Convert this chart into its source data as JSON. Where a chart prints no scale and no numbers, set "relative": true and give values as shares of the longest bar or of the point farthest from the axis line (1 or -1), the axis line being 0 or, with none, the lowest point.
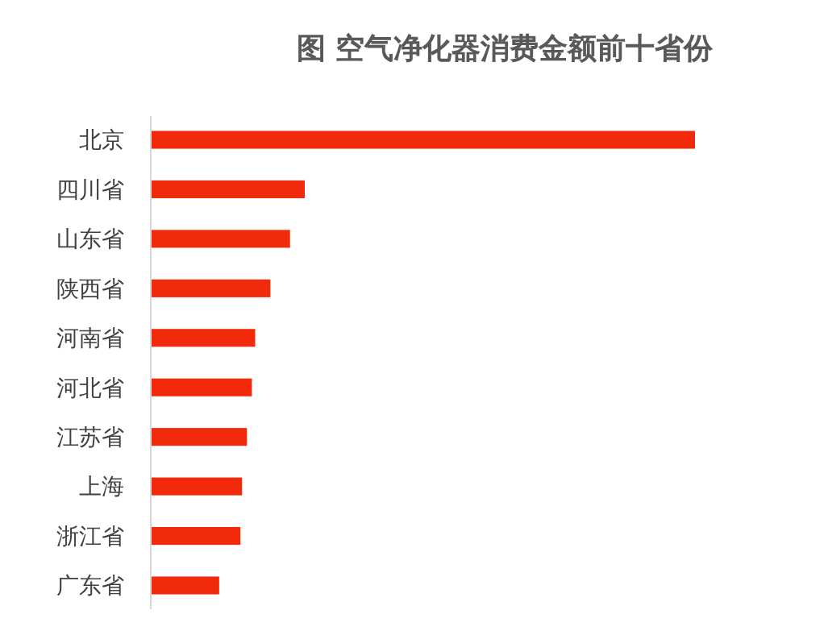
{
  "chart_data": {
    "type": "bar",
    "orientation": "horizontal",
    "relative": true,
    "title": "图 空气净化器消费金额前十省份",
    "categories": [
      "北京",
      "四川省",
      "山东省",
      "陕西省",
      "河南省",
      "河北省",
      "江苏省",
      "上海",
      "浙江省",
      "广东省"
    ],
    "values": [
      1,
      0.284,
      0.257,
      0.221,
      0.193,
      0.187,
      0.178,
      0.169,
      0.166,
      0.127
    ],
    "color": "#f02a0a"
  }
}
